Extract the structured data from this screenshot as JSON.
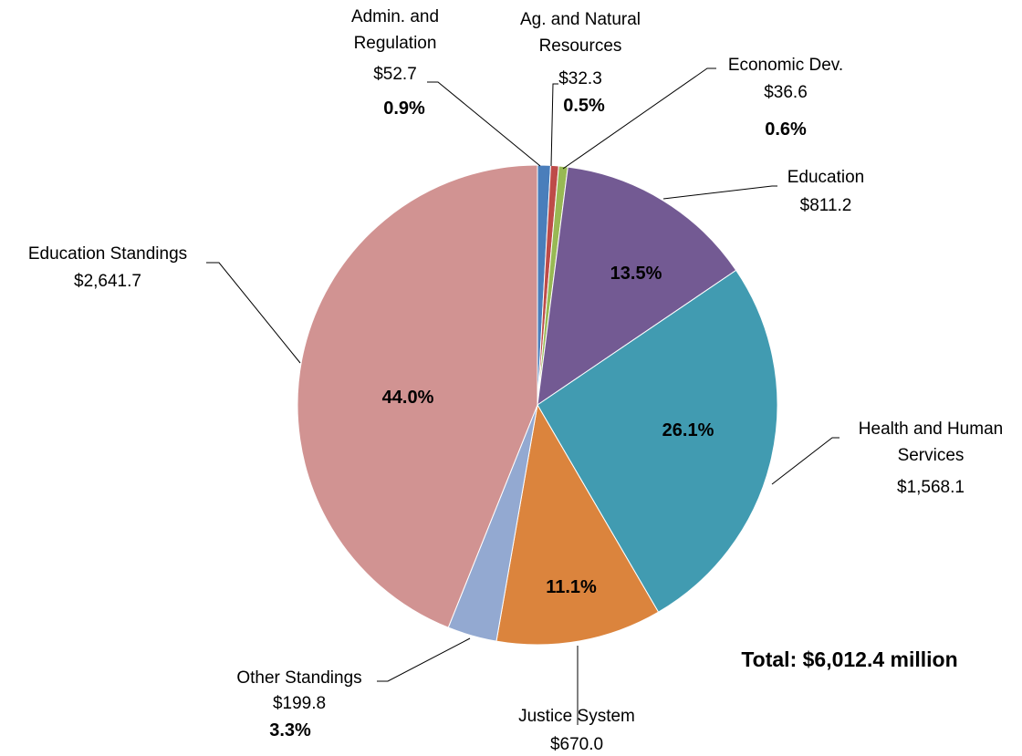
{
  "chart_data": {
    "type": "pie",
    "categories": [
      "Admin. and Regulation",
      "Ag. and Natural Resources",
      "Economic Dev.",
      "Education",
      "Health and Human Services",
      "Justice System",
      "Other Standings",
      "Education Standings"
    ],
    "values": [
      52.7,
      32.3,
      36.6,
      811.2,
      1568.1,
      670.0,
      199.8,
      2641.7
    ],
    "value_labels": [
      "$52.7",
      "$32.3",
      "$36.6",
      "$811.2",
      "$1,568.1",
      "$670.0",
      "$199.8",
      "$2,641.7"
    ],
    "percent_labels": [
      "0.9%",
      "0.5%",
      "0.6%",
      "13.5%",
      "26.1%",
      "11.1%",
      "3.3%",
      "44.0%"
    ],
    "colors": [
      "#4a7ebb",
      "#be4b48",
      "#98b954",
      "#735a93",
      "#419bb1",
      "#db843d",
      "#93a9d1",
      "#d19392"
    ],
    "annotation": "Total:  $6,012.4 million"
  }
}
